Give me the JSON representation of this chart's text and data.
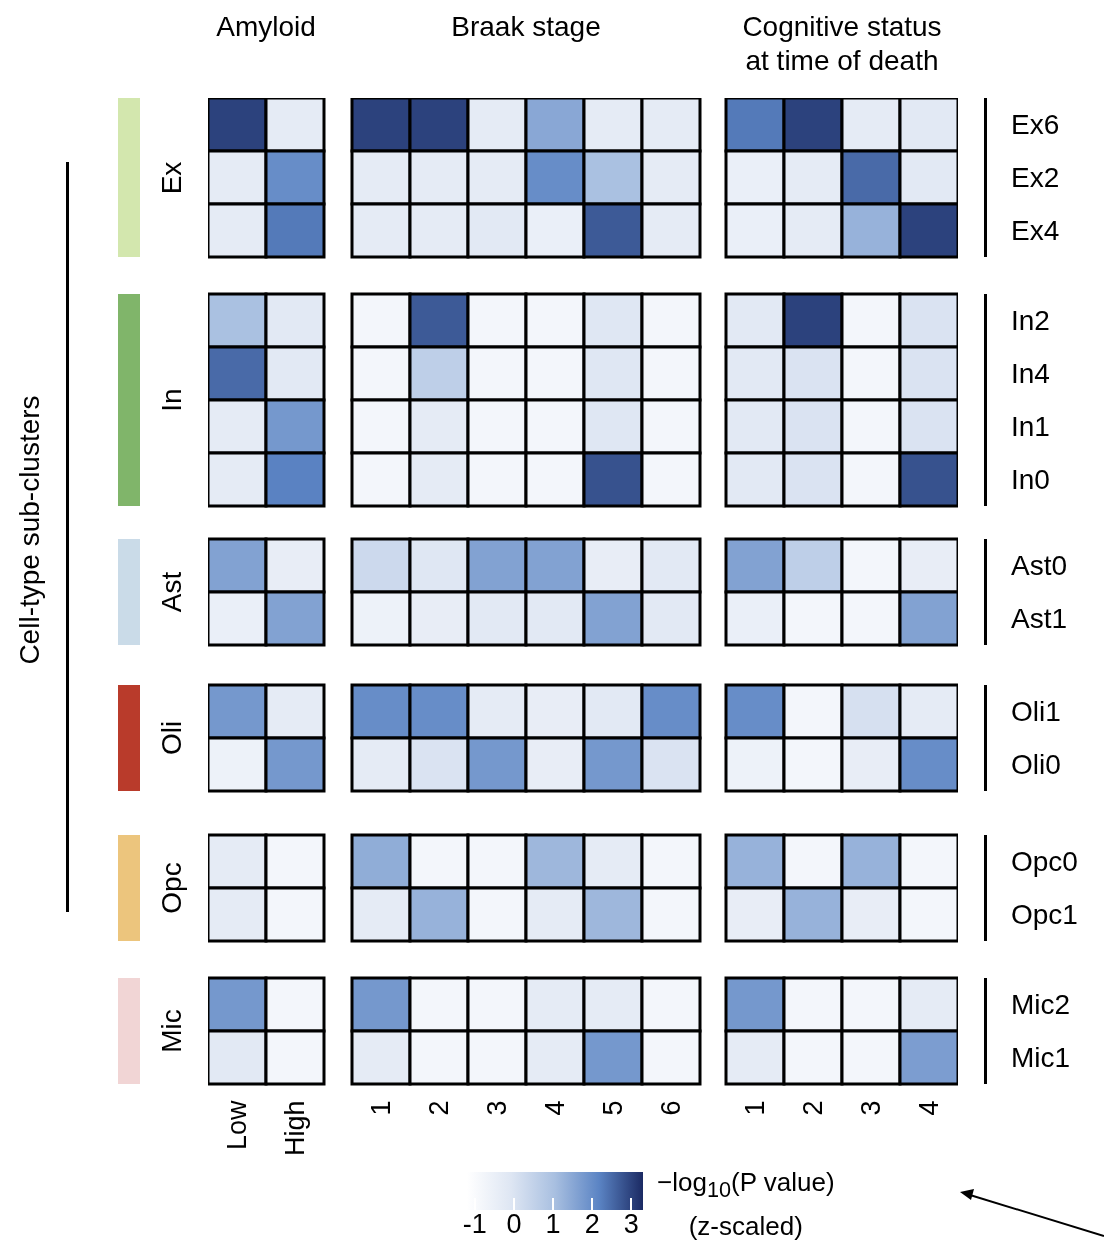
{
  "chart_data": {
    "type": "heatmap",
    "annotations": [
      "Amyloid",
      "Braak stage",
      "Cognitive status\nat time of death",
      "Ex",
      "In",
      "Ast",
      "Oli",
      "Opc",
      "Mic",
      "Cell-type sub-clusters"
    ],
    "categories": [
      "Low",
      "High",
      "1",
      "2",
      "3",
      "4",
      "5",
      "6",
      "1",
      "2",
      "3",
      "4"
    ],
    "y_categories": [
      "Ex6",
      "Ex2",
      "Ex4",
      "In2",
      "In4",
      "In1",
      "In0",
      "Ast0",
      "Ast1",
      "Oli1",
      "Oli0",
      "Opc0",
      "Opc1",
      "Mic2",
      "Mic1"
    ],
    "cells": [
      [
        3,
        -0.3,
        3,
        3,
        -0.3,
        1.5,
        -0.3,
        -0.3,
        2.3,
        3,
        -0.3,
        -0.2
      ],
      [
        -0.3,
        2,
        -0.3,
        -0.3,
        -0.3,
        2,
        1,
        -0.3,
        -0.5,
        -0.3,
        2.5,
        -0.2
      ],
      [
        -0.3,
        2.3,
        -0.3,
        -0.3,
        -0.2,
        -0.5,
        2.7,
        -0.3,
        -0.5,
        -0.3,
        1.3,
        3
      ],
      [
        1,
        -0.2,
        -0.8,
        2.7,
        -0.8,
        -0.8,
        -0.1,
        -0.8,
        -0.2,
        3,
        -0.8,
        0
      ],
      [
        2.5,
        -0.2,
        -0.8,
        0.6,
        -0.8,
        -0.8,
        -0.1,
        -0.8,
        -0.2,
        0,
        -0.8,
        0
      ],
      [
        -0.3,
        1.8,
        -0.8,
        -0.3,
        -0.8,
        -0.8,
        -0.1,
        -0.8,
        -0.2,
        0,
        -0.8,
        0
      ],
      [
        -0.3,
        2.2,
        -0.8,
        -0.3,
        -0.8,
        -0.8,
        2.8,
        -0.8,
        -0.2,
        0,
        -0.8,
        2.8
      ],
      [
        1.6,
        -0.4,
        0.3,
        -0.1,
        1.6,
        1.6,
        -0.4,
        -0.2,
        1.6,
        0.6,
        -0.8,
        -0.4
      ],
      [
        -0.5,
        1.6,
        -0.6,
        -0.4,
        -0.2,
        -0.2,
        1.6,
        -0.2,
        -0.5,
        -0.8,
        -0.8,
        1.6
      ],
      [
        1.8,
        -0.3,
        2,
        2,
        -0.3,
        -0.4,
        -0.2,
        2,
        2,
        -0.8,
        0.1,
        -0.3
      ],
      [
        -0.6,
        1.8,
        -0.3,
        0,
        1.8,
        -0.4,
        1.8,
        0,
        -0.6,
        -0.8,
        -0.4,
        2
      ],
      [
        -0.3,
        -0.8,
        1.4,
        -0.8,
        -0.8,
        1.2,
        -0.3,
        -0.8,
        1.3,
        -0.8,
        1.3,
        -0.8
      ],
      [
        -0.3,
        -0.8,
        -0.3,
        1.3,
        -0.8,
        -0.3,
        1.2,
        -0.8,
        -0.4,
        1.3,
        -0.4,
        -0.8
      ],
      [
        1.8,
        -0.8,
        1.8,
        -0.8,
        -0.8,
        -0.3,
        -0.3,
        -0.8,
        1.8,
        -0.8,
        -0.8,
        -0.3
      ],
      [
        -0.2,
        -0.8,
        -0.3,
        -0.8,
        -0.8,
        -0.3,
        1.8,
        -0.8,
        -0.3,
        -0.8,
        -0.8,
        1.7
      ]
    ],
    "clim": [
      -1.2,
      3.3
    ],
    "cticks": [
      -1,
      0,
      1,
      2,
      3
    ],
    "clabel": "−log$_{10}$(P value) (z-scaled)"
  }
}
